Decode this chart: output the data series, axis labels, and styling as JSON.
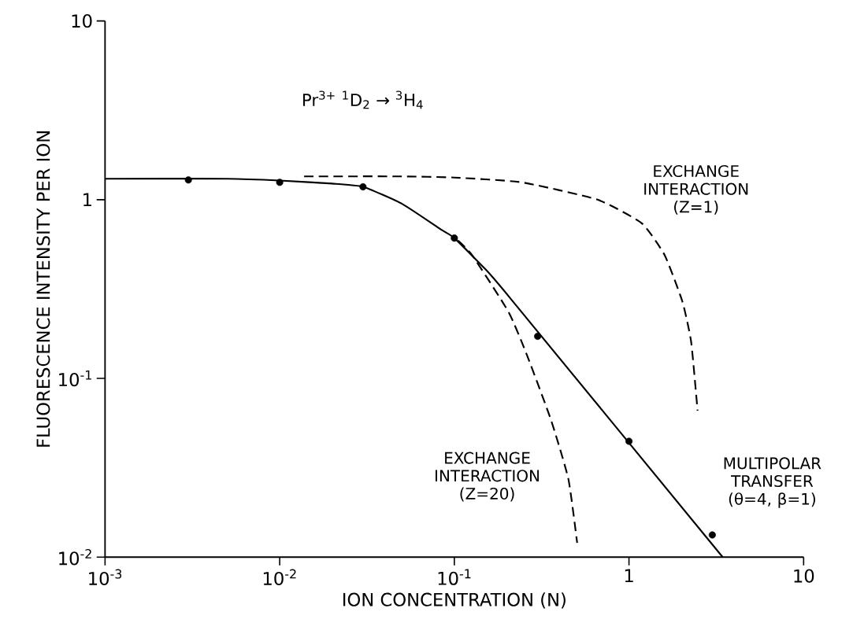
{
  "chart_data": {
    "type": "line",
    "xlabel": "ION CONCENTRATION (N)",
    "ylabel": "FLUORESCENCE INTENSITY PER ION",
    "log": "xy",
    "xlim": [
      0.001,
      10
    ],
    "ylim": [
      0.01,
      10
    ],
    "xticks": [
      {
        "value": 0.001,
        "label": "10$^{-3}$"
      },
      {
        "value": 0.01,
        "label": "10$^{-2}$"
      },
      {
        "value": 0.1,
        "label": "10$^{-1}$"
      },
      1,
      10
    ],
    "yticks": [
      {
        "value": 0.01,
        "label": "10$^{-2}$"
      },
      {
        "value": 0.1,
        "label": "10$^{-1}$"
      },
      1,
      10
    ],
    "grid": false,
    "annotations": [
      "Pr$^{3+}$ $^{1}$D$_{2}$ → $^{3}$H$_{4}$",
      "EXCHANGE INTERACTION (Z=1)",
      "EXCHANGE INTERACTION (Z=20)",
      "MULTIPOLAR TRANSFER (θ=4, β=1)"
    ],
    "series": [
      {
        "type": "scatter",
        "marker": "circle",
        "color": "#000000",
        "x": [
          0.003,
          0.01,
          0.03,
          0.1,
          0.3,
          1.0,
          3.0
        ],
        "values": [
          1.29,
          1.25,
          1.18,
          0.61,
          0.172,
          0.0445,
          0.0133
        ]
      },
      {
        "line_style": "solid",
        "color": "#000000",
        "x": [
          0.001,
          0.005,
          0.01,
          0.02,
          0.03,
          0.05,
          0.084,
          0.1,
          0.15,
          0.209,
          3.44
        ],
        "values": [
          1.31,
          1.31,
          1.28,
          1.23,
          1.18,
          0.95,
          0.68,
          0.61,
          0.41,
          0.281,
          0.01
        ]
      },
      {
        "line_style": "dashed",
        "color": "#000000",
        "x": [
          0.105,
          0.127,
          0.205,
          0.262,
          0.358,
          0.45,
          0.505
        ],
        "values": [
          0.59,
          0.487,
          0.234,
          0.133,
          0.0584,
          0.0273,
          0.012
        ]
      },
      {
        "line_style": "dashed",
        "color": "#000000",
        "x": [
          0.0138,
          0.05,
          0.1,
          0.244,
          0.66,
          1.18,
          1.6,
          2.02,
          2.27,
          2.47
        ],
        "values": [
          1.35,
          1.35,
          1.33,
          1.25,
          1.0,
          0.74,
          0.49,
          0.27,
          0.16,
          0.066
        ]
      }
    ]
  }
}
